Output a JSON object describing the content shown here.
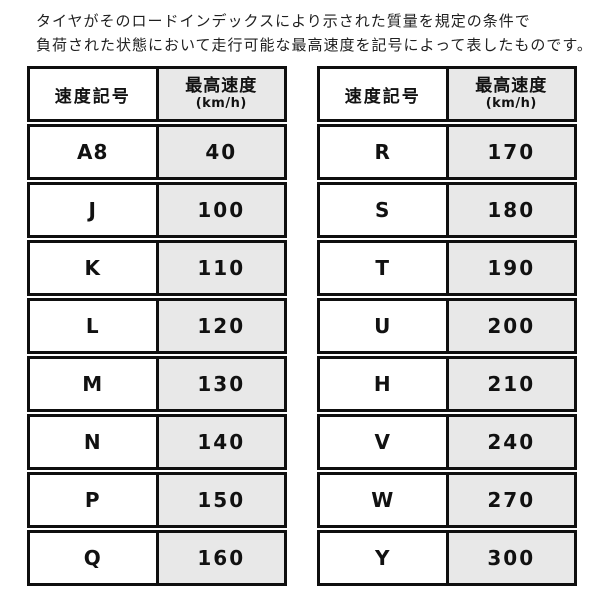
{
  "colors": {
    "background": "#ffffff",
    "border": "#0f0f0f",
    "speed_column_bg": "#e8e8e8",
    "text": "#111111"
  },
  "intro": {
    "line1": "タイヤがそのロードインデックスにより示された質量を規定の条件で",
    "line2": "負荷された状態において走行可能な最高速度を記号によって表したものです。"
  },
  "table_left": {
    "headers": {
      "symbol": "速度記号",
      "speed": "最高速度",
      "unit": "(km/h)"
    },
    "rows": [
      {
        "symbol": "A8",
        "speed": "40"
      },
      {
        "symbol": "J",
        "speed": "100"
      },
      {
        "symbol": "K",
        "speed": "110"
      },
      {
        "symbol": "L",
        "speed": "120"
      },
      {
        "symbol": "M",
        "speed": "130"
      },
      {
        "symbol": "N",
        "speed": "140"
      },
      {
        "symbol": "P",
        "speed": "150"
      },
      {
        "symbol": "Q",
        "speed": "160"
      }
    ]
  },
  "table_right": {
    "headers": {
      "symbol": "速度記号",
      "speed": "最高速度",
      "unit": "(km/h)"
    },
    "rows": [
      {
        "symbol": "R",
        "speed": "170"
      },
      {
        "symbol": "S",
        "speed": "180"
      },
      {
        "symbol": "T",
        "speed": "190"
      },
      {
        "symbol": "U",
        "speed": "200"
      },
      {
        "symbol": "H",
        "speed": "210"
      },
      {
        "symbol": "V",
        "speed": "240"
      },
      {
        "symbol": "W",
        "speed": "270"
      },
      {
        "symbol": "Y",
        "speed": "300"
      }
    ]
  }
}
